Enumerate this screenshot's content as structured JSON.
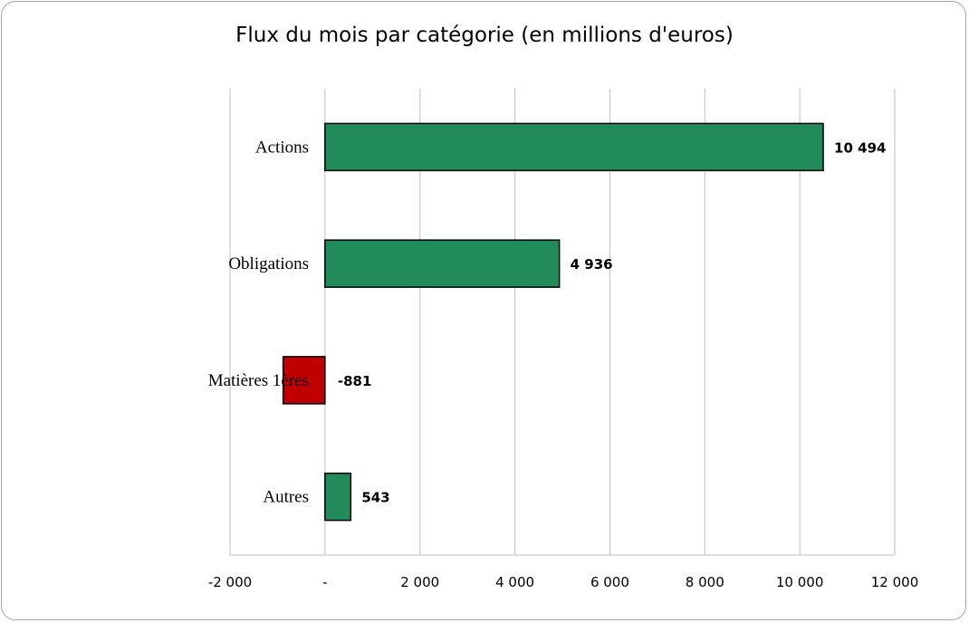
{
  "chart_data": {
    "type": "bar",
    "orientation": "horizontal",
    "title": "Flux du mois par catégorie (en millions d'euros)",
    "categories": [
      "Actions",
      "Obligations",
      "Matières 1ères",
      "Autres"
    ],
    "values": [
      10494,
      4936,
      -881,
      543
    ],
    "data_labels": [
      "10 494",
      "4 936",
      "-881",
      "543"
    ],
    "xlim": [
      -2000,
      12000
    ],
    "x_ticks": [
      -2000,
      0,
      2000,
      4000,
      6000,
      8000,
      10000,
      12000
    ],
    "x_tick_labels": [
      "-2 000",
      "-",
      "2 000",
      "4 000",
      "6 000",
      "8 000",
      "10 000",
      "12 000"
    ],
    "grid": "vertical",
    "legend": "none",
    "colors": {
      "positive": "#218b5a",
      "negative": "#c00000",
      "grid": "#bfbfbf",
      "border": "#000000"
    }
  }
}
